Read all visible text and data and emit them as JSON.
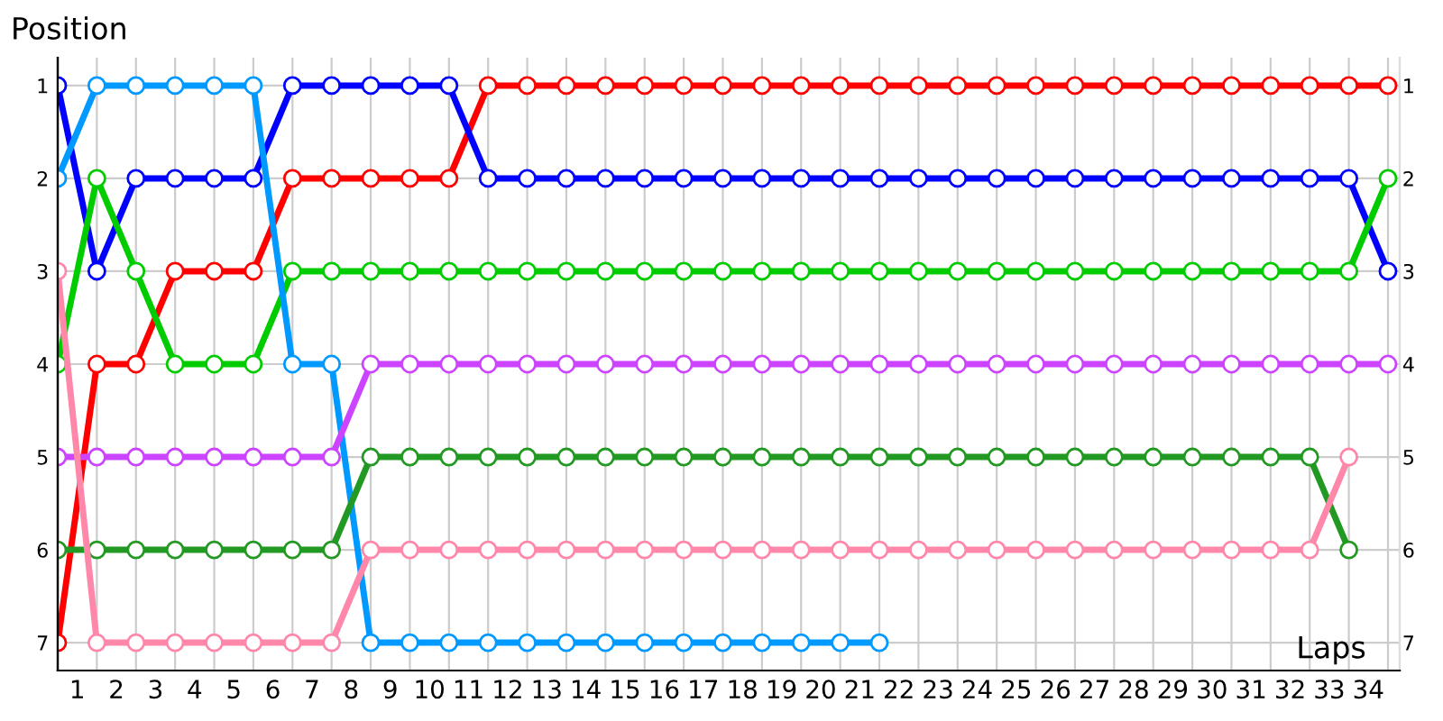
{
  "chart_data": {
    "type": "line",
    "xlabel": "Laps",
    "ylabel": "Position",
    "x": [
      0,
      1,
      2,
      3,
      4,
      5,
      6,
      7,
      8,
      9,
      10,
      11,
      12,
      13,
      14,
      15,
      16,
      17,
      18,
      19,
      20,
      21,
      22,
      23,
      24,
      25,
      26,
      27,
      28,
      29,
      30,
      31,
      32,
      33,
      34
    ],
    "series": [
      {
        "color": "#ff0000",
        "values": [
          7,
          4,
          4,
          3,
          3,
          3,
          2,
          2,
          2,
          2,
          2,
          1,
          1,
          1,
          1,
          1,
          1,
          1,
          1,
          1,
          1,
          1,
          1,
          1,
          1,
          1,
          1,
          1,
          1,
          1,
          1,
          1,
          1,
          1,
          1
        ]
      },
      {
        "color": "#0000ff",
        "values": [
          1,
          3,
          2,
          2,
          2,
          2,
          1,
          1,
          1,
          1,
          1,
          2,
          2,
          2,
          2,
          2,
          2,
          2,
          2,
          2,
          2,
          2,
          2,
          2,
          2,
          2,
          2,
          2,
          2,
          2,
          2,
          2,
          2,
          2,
          3
        ]
      },
      {
        "color": "#00cc00",
        "values": [
          4,
          2,
          3,
          4,
          4,
          4,
          3,
          3,
          3,
          3,
          3,
          3,
          3,
          3,
          3,
          3,
          3,
          3,
          3,
          3,
          3,
          3,
          3,
          3,
          3,
          3,
          3,
          3,
          3,
          3,
          3,
          3,
          3,
          3,
          2
        ]
      },
      {
        "color": "#0099ff",
        "values": [
          2,
          1,
          1,
          1,
          1,
          1,
          4,
          4,
          7,
          7,
          7,
          7,
          7,
          7,
          7,
          7,
          7,
          7,
          7,
          7,
          7,
          7,
          null,
          null,
          null,
          null,
          null,
          null,
          null,
          null,
          null,
          null,
          null,
          null,
          null
        ]
      },
      {
        "color": "#cc44ff",
        "values": [
          5,
          5,
          5,
          5,
          5,
          5,
          5,
          5,
          4,
          4,
          4,
          4,
          4,
          4,
          4,
          4,
          4,
          4,
          4,
          4,
          4,
          4,
          4,
          4,
          4,
          4,
          4,
          4,
          4,
          4,
          4,
          4,
          4,
          4,
          4
        ]
      },
      {
        "color": "#229922",
        "values": [
          6,
          6,
          6,
          6,
          6,
          6,
          6,
          6,
          5,
          5,
          5,
          5,
          5,
          5,
          5,
          5,
          5,
          5,
          5,
          5,
          5,
          5,
          5,
          5,
          5,
          5,
          5,
          5,
          5,
          5,
          5,
          5,
          5,
          6,
          null
        ]
      },
      {
        "color": "#ff88aa",
        "values": [
          3,
          7,
          7,
          7,
          7,
          7,
          7,
          7,
          6,
          6,
          6,
          6,
          6,
          6,
          6,
          6,
          6,
          6,
          6,
          6,
          6,
          6,
          6,
          6,
          6,
          6,
          6,
          6,
          6,
          6,
          6,
          6,
          6,
          5,
          null
        ]
      }
    ],
    "xlim": [
      0,
      34.3
    ],
    "xticks": [
      {
        "value": 0,
        "label": null
      },
      {
        "value": 0.5,
        "label": "1"
      },
      {
        "value": 1,
        "label": null
      },
      {
        "value": 1.5,
        "label": "2"
      },
      {
        "value": 2,
        "label": null
      },
      {
        "value": 2.5,
        "label": "3"
      },
      {
        "value": 3,
        "label": null
      },
      {
        "value": 3.5,
        "label": "4"
      },
      {
        "value": 4,
        "label": null
      },
      {
        "value": 4.5,
        "label": "5"
      },
      {
        "value": 5,
        "label": null
      },
      {
        "value": 5.5,
        "label": "6"
      },
      {
        "value": 6,
        "label": null
      },
      {
        "value": 6.5,
        "label": "7"
      },
      {
        "value": 7,
        "label": null
      },
      {
        "value": 7.5,
        "label": "8"
      },
      {
        "value": 8,
        "label": null
      },
      {
        "value": 8.5,
        "label": "9"
      },
      {
        "value": 9,
        "label": null
      },
      {
        "value": 9.5,
        "label": "10"
      },
      {
        "value": 10,
        "label": null
      },
      {
        "value": 10.5,
        "label": "11"
      },
      {
        "value": 11,
        "label": null
      },
      {
        "value": 11.5,
        "label": "12"
      },
      {
        "value": 12,
        "label": null
      },
      {
        "value": 12.5,
        "label": "13"
      },
      {
        "value": 13,
        "label": null
      },
      {
        "value": 13.5,
        "label": "14"
      },
      {
        "value": 14,
        "label": null
      },
      {
        "value": 14.5,
        "label": "15"
      },
      {
        "value": 15,
        "label": null
      },
      {
        "value": 15.5,
        "label": "16"
      },
      {
        "value": 16,
        "label": null
      },
      {
        "value": 16.5,
        "label": "17"
      },
      {
        "value": 17,
        "label": null
      },
      {
        "value": 17.5,
        "label": "18"
      },
      {
        "value": 18,
        "label": null
      },
      {
        "value": 18.5,
        "label": "19"
      },
      {
        "value": 19,
        "label": null
      },
      {
        "value": 19.5,
        "label": "20"
      },
      {
        "value": 20,
        "label": null
      },
      {
        "value": 20.5,
        "label": "21"
      },
      {
        "value": 21,
        "label": null
      },
      {
        "value": 21.5,
        "label": "22"
      },
      {
        "value": 22,
        "label": null
      },
      {
        "value": 22.5,
        "label": "23"
      },
      {
        "value": 23,
        "label": null
      },
      {
        "value": 23.5,
        "label": "24"
      },
      {
        "value": 24,
        "label": null
      },
      {
        "value": 24.5,
        "label": "25"
      },
      {
        "value": 25,
        "label": null
      },
      {
        "value": 25.5,
        "label": "26"
      },
      {
        "value": 26,
        "label": null
      },
      {
        "value": 26.5,
        "label": "27"
      },
      {
        "value": 27,
        "label": null
      },
      {
        "value": 27.5,
        "label": "28"
      },
      {
        "value": 28,
        "label": null
      },
      {
        "value": 28.5,
        "label": "29"
      },
      {
        "value": 29,
        "label": null
      },
      {
        "value": 29.5,
        "label": "30"
      },
      {
        "value": 30,
        "label": null
      },
      {
        "value": 30.5,
        "label": "31"
      },
      {
        "value": 31,
        "label": null
      },
      {
        "value": 31.5,
        "label": "32"
      },
      {
        "value": 32,
        "label": null
      },
      {
        "value": 32.5,
        "label": "33"
      },
      {
        "value": 33,
        "label": null
      },
      {
        "value": 33.5,
        "label": "34"
      },
      {
        "value": 34,
        "label": null
      }
    ],
    "ylim": [
      7.3,
      0.7
    ],
    "yticks": [
      1,
      2,
      3,
      4,
      5,
      6,
      7
    ],
    "y2lim": [
      7.3,
      0.7
    ],
    "y2ticks": [
      1,
      2,
      3,
      4,
      5,
      6,
      7
    ],
    "grid": true,
    "marker": "circle",
    "line_style": "solid",
    "legend": false
  }
}
